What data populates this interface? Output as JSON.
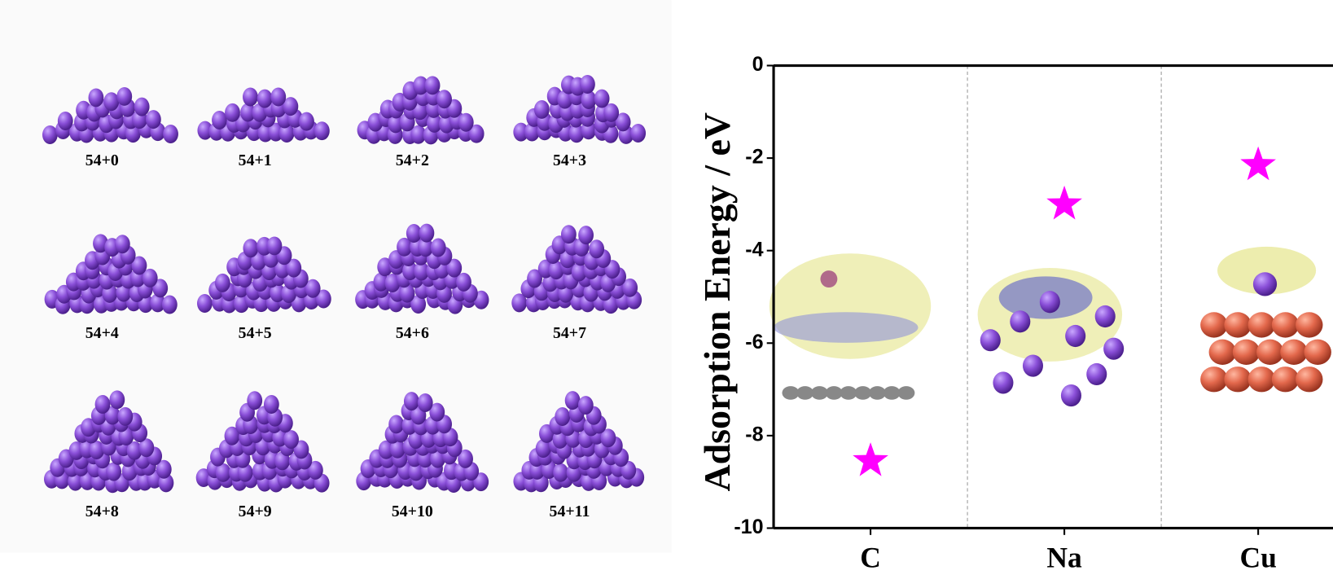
{
  "cluster_labels": [
    "54+0",
    "54+1",
    "54+2",
    "54+3",
    "54+4",
    "54+5",
    "54+6",
    "54+7",
    "54+8",
    "54+9",
    "54+10",
    "54+11"
  ],
  "chart_data": {
    "type": "scatter",
    "y_label": "Adsorption Energy / eV",
    "categories": [
      "C",
      "Na",
      "Cu"
    ],
    "values": [
      -8.55,
      -3.0,
      -2.15
    ],
    "color": "#ff00ff",
    "ylim": [
      -10,
      0
    ],
    "yticks": [
      0,
      -2,
      -4,
      -6,
      -8,
      -10
    ]
  }
}
